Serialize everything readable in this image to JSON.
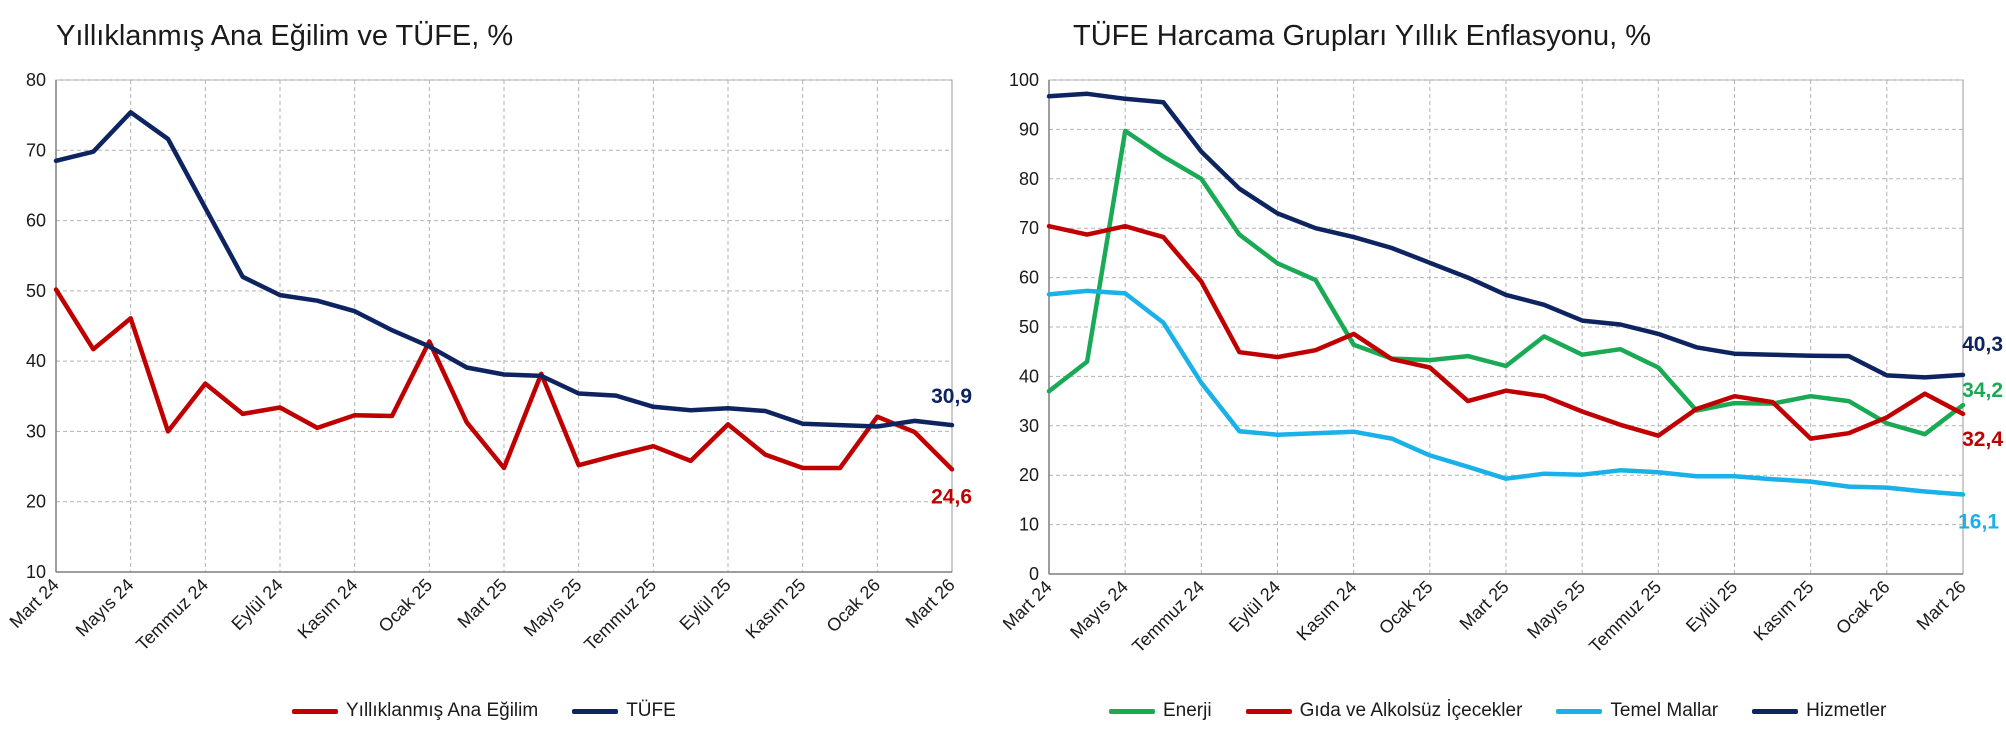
{
  "chart_data": [
    {
      "type": "line",
      "title": "Yıllıklanmış Ana Eğilim ve TÜFE, %",
      "categories": [
        "Mart 24",
        "Nisan 24",
        "Mayıs 24",
        "Haziran 24",
        "Temmuz 24",
        "Ağustos 24",
        "Eylül 24",
        "Ekim 24",
        "Kasım 24",
        "Aralık 24",
        "Ocak 25",
        "Şubat 25",
        "Mart 25",
        "Nisan 25",
        "Mayıs 25",
        "Haziran 25",
        "Temmuz 25",
        "Ağustos 25",
        "Eylül 25",
        "Ekim 25",
        "Kasım 25",
        "Aralık 25",
        "Ocak 26",
        "Şubat 26",
        "Mart 26"
      ],
      "tick_labels": [
        "Mart 24",
        "Mayıs 24",
        "Temmuz 24",
        "Eylül 24",
        "Kasım 24",
        "Ocak 25",
        "Mart 25",
        "Mayıs 25",
        "Temmuz 25",
        "Eylül 25",
        "Kasım 25",
        "Ocak 26",
        "Mart 26"
      ],
      "ylim": [
        10,
        80
      ],
      "ytick_step": 10,
      "grid": true,
      "legend": "bottom",
      "series": [
        {
          "name": "Yıllıklanmış Ana Eğilim",
          "color": "#c00000",
          "values": [
            50.2,
            41.7,
            46.1,
            30.0,
            36.8,
            32.5,
            33.4,
            30.5,
            32.3,
            32.2,
            42.8,
            31.3,
            24.8,
            38.2,
            25.2,
            26.6,
            27.9,
            25.8,
            31.0,
            26.7,
            24.8,
            24.8,
            32.1,
            29.9,
            24.6
          ],
          "end_label": "24,6"
        },
        {
          "name": "TÜFE",
          "color": "#0d2461",
          "values": [
            68.5,
            69.8,
            75.4,
            71.6,
            61.8,
            52.0,
            49.4,
            48.6,
            47.1,
            44.4,
            42.1,
            39.1,
            38.1,
            37.9,
            35.4,
            35.1,
            33.5,
            33.0,
            33.3,
            32.9,
            31.1,
            30.9,
            30.7,
            31.5,
            30.9
          ],
          "end_label": "30,9"
        }
      ]
    },
    {
      "type": "line",
      "title": "TÜFE Harcama Grupları Yıllık Enflasyonu, %",
      "categories": [
        "Mart 24",
        "Nisan 24",
        "Mayıs 24",
        "Haziran 24",
        "Temmuz 24",
        "Ağustos 24",
        "Eylül 24",
        "Ekim 24",
        "Kasım 24",
        "Aralık 24",
        "Ocak 25",
        "Şubat 25",
        "Mart 25",
        "Nisan 25",
        "Mayıs 25",
        "Haziran 25",
        "Temmuz 25",
        "Ağustos 25",
        "Eylül 25",
        "Ekim 25",
        "Kasım 25",
        "Aralık 25",
        "Ocak 26",
        "Şubat 26",
        "Mart 26"
      ],
      "tick_labels": [
        "Mart 24",
        "Mayıs 24",
        "Temmuz 24",
        "Eylül 24",
        "Kasım 24",
        "Ocak 25",
        "Mart 25",
        "Mayıs 25",
        "Temmuz 25",
        "Eylül 25",
        "Kasım 25",
        "Ocak 26",
        "Mart 26"
      ],
      "ylim": [
        0,
        100
      ],
      "ytick_step": 10,
      "grid": true,
      "legend": "bottom",
      "series": [
        {
          "name": "Enerji",
          "color": "#1aaa55",
          "values": [
            37.0,
            43.0,
            89.7,
            84.5,
            80.0,
            68.7,
            62.9,
            59.5,
            46.4,
            43.6,
            43.3,
            44.1,
            42.1,
            48.1,
            44.4,
            45.5,
            41.8,
            33.1,
            34.6,
            34.5,
            36.0,
            35.0,
            30.5,
            28.3,
            34.2
          ],
          "end_label": "34,2"
        },
        {
          "name": "Gıda ve Alkolsüz İçecekler",
          "color": "#c00000",
          "values": [
            70.4,
            68.7,
            70.4,
            68.2,
            59.2,
            44.9,
            43.9,
            45.3,
            48.6,
            43.5,
            41.8,
            35.0,
            37.1,
            36.0,
            32.9,
            30.2,
            28.0,
            33.4,
            36.0,
            34.8,
            27.4,
            28.5,
            31.7,
            36.5,
            32.4
          ],
          "end_label": "32,4"
        },
        {
          "name": "Temel Mallar",
          "color": "#1ab0e8",
          "values": [
            56.6,
            57.3,
            56.8,
            50.9,
            38.7,
            28.9,
            28.2,
            28.5,
            28.8,
            27.4,
            24.0,
            21.7,
            19.3,
            20.3,
            20.1,
            21.0,
            20.6,
            19.8,
            19.8,
            19.2,
            18.7,
            17.7,
            17.5,
            16.7,
            16.1
          ],
          "end_label": "16,1"
        },
        {
          "name": "Hizmetler",
          "color": "#0d2461",
          "values": [
            96.7,
            97.2,
            96.2,
            95.5,
            85.5,
            78.0,
            73.0,
            70.0,
            68.2,
            66.0,
            63.0,
            60.0,
            56.5,
            54.5,
            51.3,
            50.5,
            48.6,
            45.9,
            44.6,
            44.4,
            44.2,
            44.1,
            40.2,
            39.8,
            40.3
          ],
          "end_label": "40,3"
        }
      ]
    }
  ]
}
